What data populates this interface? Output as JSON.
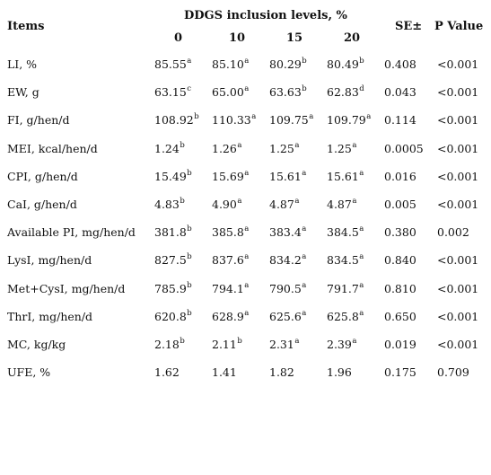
{
  "table": {
    "col_items": "Items",
    "group_header": "DDGS inclusion levels, %",
    "levels": [
      "0",
      "10",
      "15",
      "20"
    ],
    "col_se": "SE±",
    "col_p": "P Value",
    "rows": [
      {
        "item": "LI, %",
        "cells": [
          {
            "v": "85.55",
            "s": "a"
          },
          {
            "v": "85.10",
            "s": "a"
          },
          {
            "v": "80.29",
            "s": "b"
          },
          {
            "v": "80.49",
            "s": "b"
          }
        ],
        "se": "0.408",
        "p": "<0.001"
      },
      {
        "item": "EW, g",
        "cells": [
          {
            "v": "63.15",
            "s": "c"
          },
          {
            "v": "65.00",
            "s": "a"
          },
          {
            "v": "63.63",
            "s": "b"
          },
          {
            "v": "62.83",
            "s": "d"
          }
        ],
        "se": "0.043",
        "p": "<0.001"
      },
      {
        "item": "FI, g/hen/d",
        "cells": [
          {
            "v": "108.92",
            "s": "b"
          },
          {
            "v": "110.33",
            "s": "a"
          },
          {
            "v": "109.75",
            "s": "a"
          },
          {
            "v": "109.79",
            "s": "a"
          }
        ],
        "se": "0.114",
        "p": "<0.001"
      },
      {
        "item": "MEI, kcal/hen/d",
        "cells": [
          {
            "v": "1.24",
            "s": "b"
          },
          {
            "v": "1.26",
            "s": "a"
          },
          {
            "v": "1.25",
            "s": "a"
          },
          {
            "v": "1.25",
            "s": "a"
          }
        ],
        "se": "0.0005",
        "p": "<0.001"
      },
      {
        "item": "CPI, g/hen/d",
        "cells": [
          {
            "v": "15.49",
            "s": "b"
          },
          {
            "v": "15.69",
            "s": "a"
          },
          {
            "v": "15.61",
            "s": "a"
          },
          {
            "v": "15.61",
            "s": "a"
          }
        ],
        "se": "0.016",
        "p": "<0.001"
      },
      {
        "item": "CaI, g/hen/d",
        "cells": [
          {
            "v": "4.83",
            "s": "b"
          },
          {
            "v": "4.90",
            "s": "a"
          },
          {
            "v": "4.87",
            "s": "a"
          },
          {
            "v": "4.87",
            "s": "a"
          }
        ],
        "se": "0.005",
        "p": "<0.001"
      },
      {
        "item": "Available PI, mg/hen/d",
        "cells": [
          {
            "v": "381.8",
            "s": "b"
          },
          {
            "v": "385.8",
            "s": "a"
          },
          {
            "v": "383.4",
            "s": "a"
          },
          {
            "v": "384.5",
            "s": "a"
          }
        ],
        "se": "0.380",
        "p": "0.002"
      },
      {
        "item": "LysI, mg/hen/d",
        "cells": [
          {
            "v": "827.5",
            "s": "b"
          },
          {
            "v": "837.6",
            "s": "a"
          },
          {
            "v": "834.2",
            "s": "a"
          },
          {
            "v": "834.5",
            "s": "a"
          }
        ],
        "se": "0.840",
        "p": "<0.001"
      },
      {
        "item": "Met+CysI, mg/hen/d",
        "cells": [
          {
            "v": "785.9",
            "s": "b"
          },
          {
            "v": "794.1",
            "s": "a"
          },
          {
            "v": "790.5",
            "s": "a"
          },
          {
            "v": "791.7",
            "s": "a"
          }
        ],
        "se": "0.810",
        "p": "<0.001"
      },
      {
        "item": "ThrI, mg/hen/d",
        "cells": [
          {
            "v": "620.8",
            "s": "b"
          },
          {
            "v": "628.9",
            "s": "a"
          },
          {
            "v": "625.6",
            "s": "a"
          },
          {
            "v": "625.8",
            "s": "a"
          }
        ],
        "se": "0.650",
        "p": "<0.001"
      },
      {
        "item": "MC, kg/kg",
        "cells": [
          {
            "v": "2.18",
            "s": "b"
          },
          {
            "v": "2.11",
            "s": "b"
          },
          {
            "v": "2.31",
            "s": "a"
          },
          {
            "v": "2.39",
            "s": "a"
          }
        ],
        "se": "0.019",
        "p": "<0.001"
      },
      {
        "item": "UFE, %",
        "cells": [
          {
            "v": "1.62",
            "s": ""
          },
          {
            "v": "1.41",
            "s": ""
          },
          {
            "v": "1.82",
            "s": ""
          },
          {
            "v": "1.96",
            "s": ""
          }
        ],
        "se": "0.175",
        "p": "0.709"
      }
    ]
  }
}
